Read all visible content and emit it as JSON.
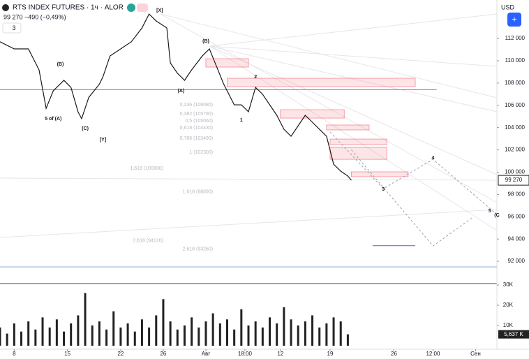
{
  "chart_data": {
    "type": "line",
    "title": "RTS INDEX FUTURES · 1ч · ALOR",
    "subtitle": "99 270 −490 (−0,49%)",
    "indicator_count": "3",
    "currency": "USD",
    "last_price_label": "99 270",
    "last_volume_label": "5,637 K",
    "color": "#1a1a1a",
    "xlim": [
      0,
      140
    ],
    "ylim": [
      90000,
      115450
    ],
    "yticks": [
      {
        "value": 92000,
        "label": "92 000"
      },
      {
        "value": 94000,
        "label": "94 000"
      },
      {
        "value": 96000,
        "label": "96 000"
      },
      {
        "value": 98000,
        "label": "98 000"
      },
      {
        "value": 100000,
        "label": "100 000"
      },
      {
        "value": 102000,
        "label": "102 000"
      },
      {
        "value": 104000,
        "label": "104 000"
      },
      {
        "value": 106000,
        "label": "106 000"
      },
      {
        "value": 108000,
        "label": "108 000"
      },
      {
        "value": 110000,
        "label": "110 000"
      },
      {
        "value": 112000,
        "label": "112 000"
      }
    ],
    "xticks": [
      {
        "value": 4,
        "label": "8"
      },
      {
        "value": 19,
        "label": "15"
      },
      {
        "value": 34,
        "label": "22"
      },
      {
        "value": 46,
        "label": "26"
      },
      {
        "value": 58,
        "label": "Авг"
      },
      {
        "value": 69,
        "label": "18:00"
      },
      {
        "value": 79,
        "label": "12"
      },
      {
        "value": 93,
        "label": "19"
      },
      {
        "value": 111,
        "label": "26"
      },
      {
        "value": 122,
        "label": "12:00"
      },
      {
        "value": 134,
        "label": "Сен"
      }
    ],
    "x": [
      0,
      4,
      8,
      11,
      13,
      15,
      18,
      20,
      22,
      23,
      25,
      28,
      29,
      31,
      34,
      37,
      40,
      42,
      44,
      47,
      48,
      50,
      52,
      54,
      57,
      59,
      61,
      63,
      66,
      68,
      70,
      72,
      74,
      76,
      78,
      80,
      82,
      84,
      86,
      88,
      90,
      92,
      93,
      94,
      96,
      98,
      99
    ],
    "values": [
      111700,
      111060,
      111060,
      109180,
      105730,
      107300,
      108240,
      107600,
      105400,
      104800,
      106700,
      107900,
      108550,
      110430,
      111060,
      111700,
      112940,
      114190,
      113570,
      112940,
      109800,
      108870,
      108240,
      109180,
      110430,
      111060,
      109490,
      107920,
      106040,
      106040,
      105420,
      107610,
      106980,
      106040,
      105100,
      103850,
      103220,
      104160,
      105100,
      104480,
      103850,
      103220,
      101970,
      100710,
      100090,
      99650,
      99270
    ],
    "levels": [
      {
        "value": 107400,
        "x": [
          0,
          123
        ],
        "color": "#5b8fd6"
      },
      {
        "value": 91500,
        "x": [
          0,
          140
        ],
        "color": "#7fa8e0"
      },
      {
        "value": 93400,
        "x": [
          105,
          117
        ],
        "color": "#3b6fc4"
      }
    ],
    "zones": [
      {
        "x": [
          58,
          70
        ],
        "y": [
          109430,
          110180
        ]
      },
      {
        "x": [
          64,
          117
        ],
        "y": [
          107670,
          108430
        ]
      },
      {
        "x": [
          79,
          97
        ],
        "y": [
          104850,
          105600
        ]
      },
      {
        "x": [
          92,
          104
        ],
        "y": [
          103790,
          104230
        ]
      },
      {
        "x": [
          93,
          109
        ],
        "y": [
          102470,
          102970
        ]
      },
      {
        "x": [
          93,
          109
        ],
        "y": [
          101150,
          102220
        ]
      },
      {
        "x": [
          99,
          115
        ],
        "y": [
          99590,
          100030
        ]
      }
    ],
    "projections": [
      {
        "x": [
          93,
          108,
          122,
          140
        ],
        "y": [
          103600,
          98520,
          101150,
          96200
        ]
      },
      {
        "x": [
          99,
          122,
          133
        ],
        "y": [
          102000,
          93380,
          95890
        ]
      }
    ],
    "annotations": [
      {
        "text": "[X]",
        "x": 45,
        "y": 114510
      },
      {
        "text": "(B)",
        "x": 58,
        "y": 111750
      },
      {
        "text": "(B)",
        "x": 17,
        "y": 109680
      },
      {
        "text": "(A)",
        "x": 51,
        "y": 107300
      },
      {
        "text": "5 of (A)",
        "x": 15,
        "y": 104790
      },
      {
        "text": "(C)",
        "x": 24,
        "y": 103910
      },
      {
        "text": "[Y]",
        "x": 29,
        "y": 102910
      },
      {
        "text": "2",
        "x": 72,
        "y": 108550
      },
      {
        "text": "1",
        "x": 68,
        "y": 104660
      },
      {
        "text": "3",
        "x": 108,
        "y": 98460
      },
      {
        "text": "4",
        "x": 122,
        "y": 101280
      },
      {
        "text": "5",
        "x": 138,
        "y": 96510
      },
      {
        "text": "(C",
        "x": 140,
        "y": 96140
      }
    ],
    "fib_labels": [
      {
        "text": "0,236 (106080)",
        "x": 60,
        "y": 106050
      },
      {
        "text": "0,382 (105790)",
        "x": 60,
        "y": 105230
      },
      {
        "text": "0,5 (105060)",
        "x": 60,
        "y": 104600
      },
      {
        "text": "0,618 (104430)",
        "x": 60,
        "y": 103970
      },
      {
        "text": "0,786 (103490)",
        "x": 60,
        "y": 103030
      },
      {
        "text": "1 (102300)",
        "x": 60,
        "y": 101780
      },
      {
        "text": "1,618 (100860)",
        "x": 46,
        "y": 100330
      },
      {
        "text": "1,618 (98890)",
        "x": 60,
        "y": 98240
      },
      {
        "text": "2,618 (94120)",
        "x": 46,
        "y": 93850
      },
      {
        "text": "2,618 (93260)",
        "x": 60,
        "y": 93100
      }
    ],
    "volume": {
      "color": "#222222",
      "ylim": [
        0,
        30000
      ],
      "yticks": [
        {
          "value": 10000,
          "label": "10K"
        },
        {
          "value": 20000,
          "label": "20K"
        },
        {
          "value": 30000,
          "label": "30K"
        }
      ],
      "x": [
        0,
        2,
        4,
        6,
        8,
        10,
        12,
        14,
        16,
        18,
        20,
        22,
        24,
        26,
        28,
        30,
        32,
        34,
        36,
        38,
        40,
        42,
        44,
        46,
        48,
        50,
        52,
        54,
        56,
        58,
        60,
        62,
        64,
        66,
        68,
        70,
        72,
        74,
        76,
        78,
        80,
        82,
        84,
        86,
        88,
        90,
        92,
        94,
        96,
        98
      ],
      "values": [
        9000,
        6000,
        11000,
        7000,
        12000,
        8000,
        14000,
        9000,
        13000,
        7000,
        11000,
        15000,
        26000,
        10000,
        12000,
        8000,
        17000,
        9000,
        11000,
        7000,
        13000,
        9000,
        15000,
        23000,
        12000,
        8000,
        10000,
        14000,
        9000,
        12000,
        16000,
        11000,
        13000,
        8000,
        18000,
        10000,
        12000,
        9000,
        14000,
        11000,
        19000,
        13000,
        10000,
        12000,
        15000,
        9000,
        11000,
        14000,
        12000,
        5637
      ]
    }
  }
}
